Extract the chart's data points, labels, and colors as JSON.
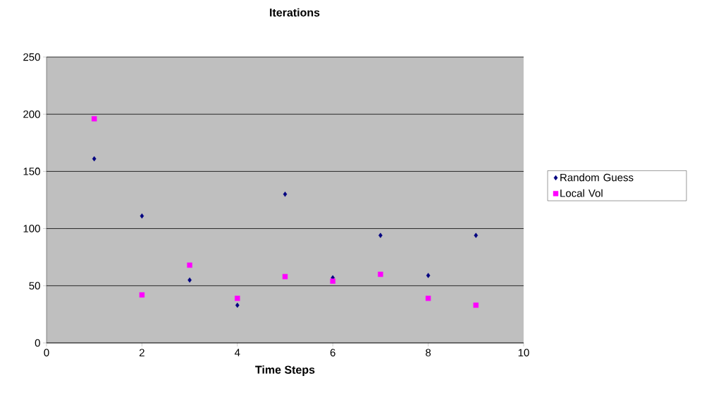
{
  "chart_data": {
    "type": "scatter",
    "title": "Iterations",
    "xlabel": "Time Steps",
    "x": [
      1,
      2,
      3,
      4,
      5,
      6,
      7,
      8,
      9
    ],
    "series": [
      {
        "name": "Random Guess",
        "color": "#000080",
        "marker": "diamond",
        "values": [
          161,
          111,
          55,
          33,
          130,
          57,
          94,
          59,
          94
        ]
      },
      {
        "name": "Local Vol",
        "color": "#ff00ff",
        "marker": "square",
        "values": [
          196,
          42,
          68,
          39,
          58,
          54,
          60,
          39,
          33
        ]
      }
    ],
    "xlim": [
      0,
      10
    ],
    "ylim": [
      0,
      250
    ],
    "xticks": [
      0,
      2,
      4,
      6,
      8,
      10
    ],
    "yticks": [
      0,
      50,
      100,
      150,
      200,
      250
    ],
    "grid": "y",
    "legend": "right"
  }
}
